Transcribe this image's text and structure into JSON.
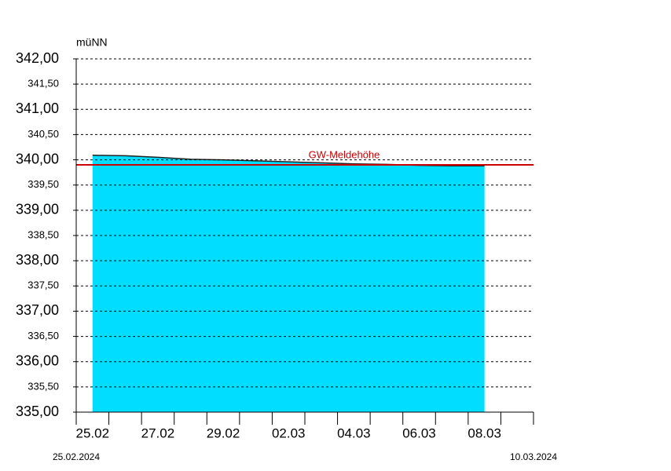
{
  "chart_data": {
    "type": "area",
    "y_unit": "müNN",
    "categories": [
      "25.02",
      null,
      "27.02",
      null,
      "29.02",
      null,
      "02.03",
      null,
      "04.03",
      null,
      "06.03",
      null,
      "08.03",
      null
    ],
    "series": [
      {
        "color": "#00ddff",
        "values": [
          340.09,
          340.08,
          340.05,
          340.01,
          340.0,
          339.98,
          339.96,
          339.94,
          339.92,
          339.91,
          339.89,
          339.88,
          339.88,
          null
        ]
      }
    ],
    "threshold": {
      "label": "GW-Meldehöhe",
      "value": 339.9,
      "color": "#cc0000"
    },
    "ylim": [
      335,
      342
    ],
    "yticks": [
      {
        "value": 335,
        "label": "335,00"
      },
      {
        "value": 335.5,
        "label": "335,50"
      },
      {
        "value": 336,
        "label": "336,00"
      },
      {
        "value": 336.5,
        "label": "336,50"
      },
      {
        "value": 337,
        "label": "337,00"
      },
      {
        "value": 337.5,
        "label": "337,50"
      },
      {
        "value": 338,
        "label": "338,00"
      },
      {
        "value": 338.5,
        "label": "338,50"
      },
      {
        "value": 339,
        "label": "339,00"
      },
      {
        "value": 339.5,
        "label": "339,50"
      },
      {
        "value": 340,
        "label": "340,00"
      },
      {
        "value": 340.5,
        "label": "340,50"
      },
      {
        "value": 341,
        "label": "341,00"
      },
      {
        "value": 341.5,
        "label": "341,50"
      },
      {
        "value": 342,
        "label": "342,00"
      }
    ],
    "grid": true,
    "start_date": "25.02.2024",
    "end_date": "10.03.2024"
  }
}
